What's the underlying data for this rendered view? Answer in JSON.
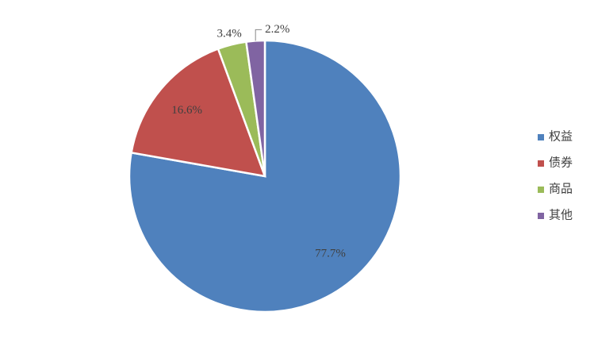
{
  "chart_data": {
    "type": "pie",
    "categories": [
      "权益",
      "债券",
      "商品",
      "其他"
    ],
    "values": [
      77.7,
      16.6,
      3.4,
      2.2
    ],
    "value_labels": [
      "77.7%",
      "16.6%",
      "3.4%",
      "2.2%"
    ],
    "colors": [
      "#4f81bd",
      "#c0504d",
      "#9bbb59",
      "#8064a2"
    ],
    "legend": "right"
  }
}
